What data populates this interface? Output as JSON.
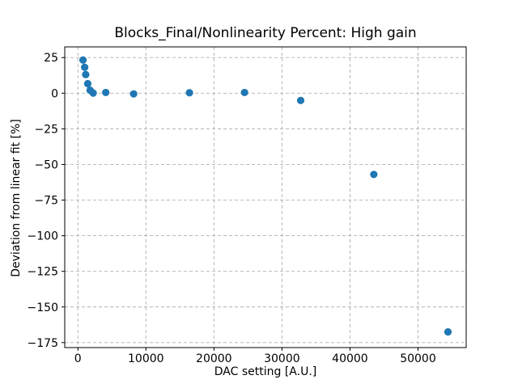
{
  "chart_data": {
    "type": "scatter",
    "title": "Blocks_Final/Nonlinearity Percent: High gain",
    "xlabel": "DAC setting [A.U.]",
    "ylabel": "Deviation from linear fit [%]",
    "x": [
      750,
      1000,
      1150,
      1450,
      1800,
      2250,
      4100,
      8200,
      16400,
      24500,
      32750,
      43500,
      54400
    ],
    "y": [
      23.3,
      18.2,
      13.1,
      6.7,
      2.1,
      0.1,
      0.5,
      -0.5,
      0.3,
      0.5,
      -5.1,
      -57.0,
      -167.5
    ],
    "xlim": [
      -1930,
      57080
    ],
    "ylim": [
      -178.5,
      32.5
    ],
    "xticks": [
      0,
      10000,
      20000,
      30000,
      40000,
      50000
    ],
    "yticks": [
      25,
      0,
      -25,
      -50,
      -75,
      -100,
      -125,
      -150,
      -175
    ],
    "grid": true,
    "grid_style": "dashed",
    "legend": "none",
    "marker_color": "#1f77b4",
    "grid_color": "#b0b0b0",
    "spine_color": "#000000"
  }
}
